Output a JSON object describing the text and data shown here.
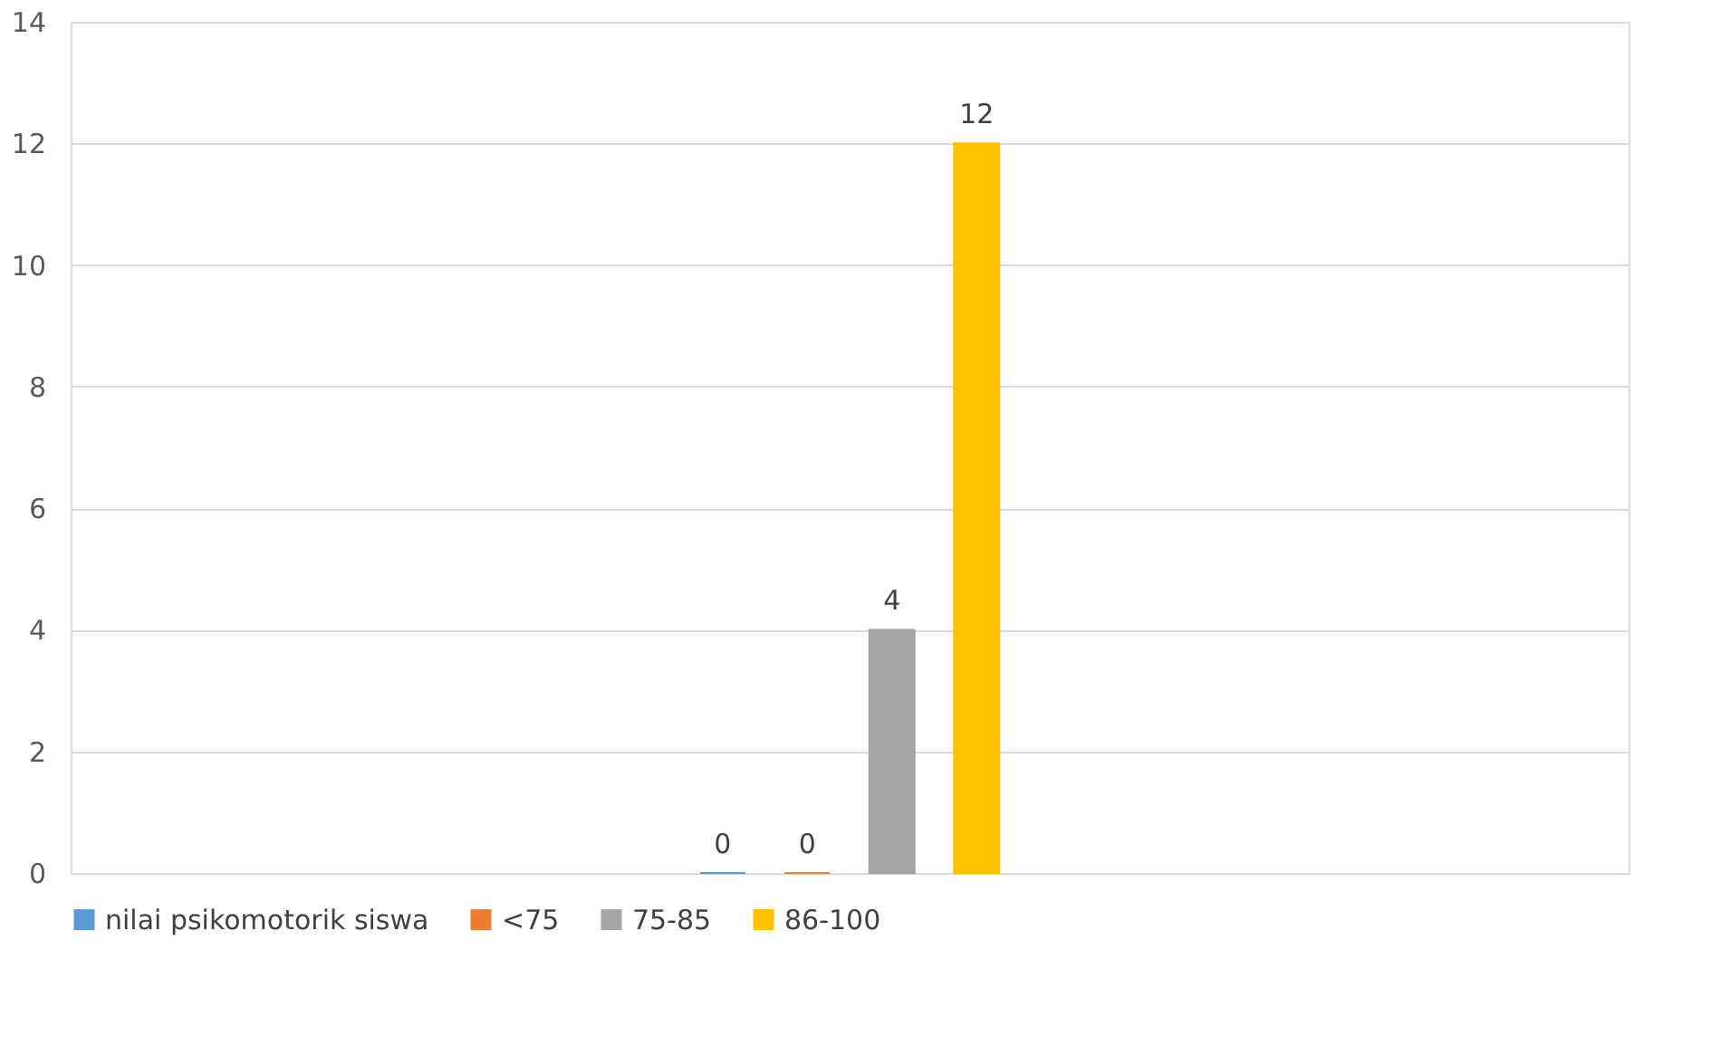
{
  "chart_data": {
    "type": "bar",
    "categories": [
      null
    ],
    "series": [
      {
        "name": "nilai psikomotorik siswa",
        "color": "#5b9bd5",
        "values": [
          0
        ]
      },
      {
        "name": "<75",
        "color": "#ed7d31",
        "values": [
          0
        ]
      },
      {
        "name": "75-85",
        "color": "#a5a5a5",
        "values": [
          4
        ]
      },
      {
        "name": "86-100",
        "color": "#ffc000",
        "values": [
          12
        ]
      }
    ],
    "ylim": [
      0,
      14
    ],
    "yticks": [
      0,
      2,
      4,
      6,
      8,
      10,
      12,
      14
    ],
    "grid": "y",
    "legend": "bottom",
    "data_labels": true,
    "tick_labels": "y"
  }
}
